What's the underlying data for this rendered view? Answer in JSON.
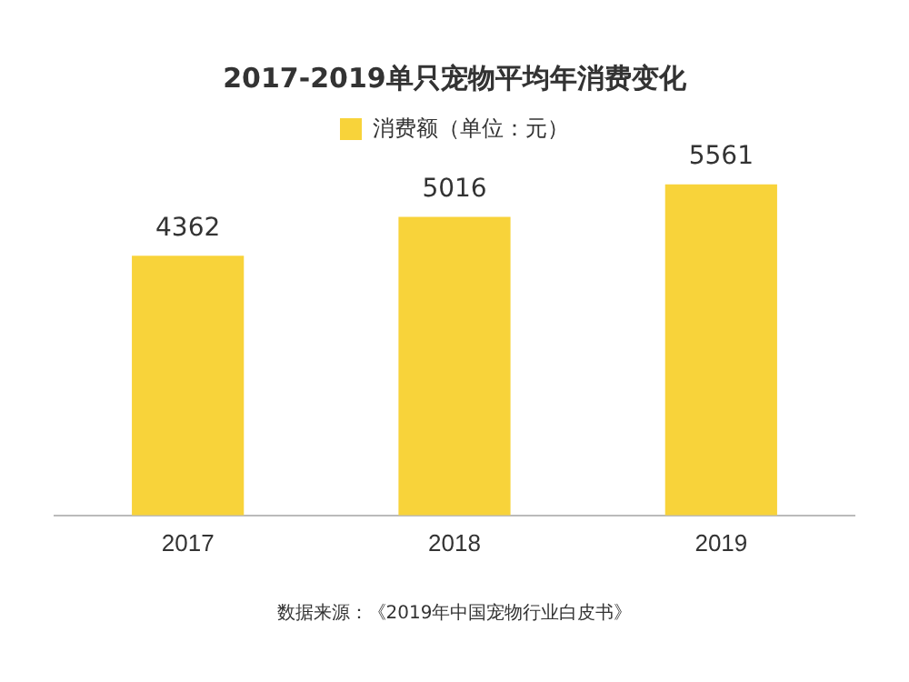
{
  "chart_data": {
    "type": "bar",
    "title": "2017-2019单只宠物平均年消费变化",
    "categories": [
      "2017",
      "2018",
      "2019"
    ],
    "series": [
      {
        "name": "消费额（单位：元）",
        "color": "#f8d33a",
        "values": [
          4362,
          5016,
          5561
        ]
      }
    ],
    "data_labels": true,
    "legend": "top",
    "grid": false,
    "annotations": [
      "数据来源：《2019年中国宠物行业白皮书》"
    ]
  }
}
